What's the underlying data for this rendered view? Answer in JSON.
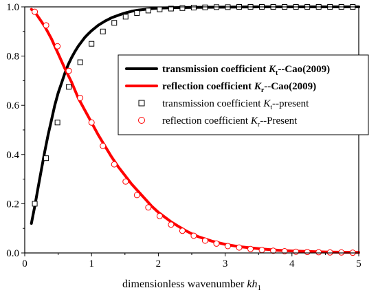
{
  "chart_data": {
    "type": "line",
    "xlabel": {
      "text": "dimensionless wavenumber ",
      "italic": "kh",
      "sub": "1"
    },
    "ylabel": "",
    "xlim": [
      0,
      5
    ],
    "ylim": [
      0,
      1.0
    ],
    "x_ticks": [
      "0",
      "1",
      "2",
      "3",
      "4",
      "5"
    ],
    "y_ticks": [
      "0.0",
      "0.2",
      "0.4",
      "0.6",
      "0.8",
      "1.0"
    ],
    "x_tick_values": [
      0,
      1,
      2,
      3,
      4,
      5
    ],
    "y_tick_values": [
      0,
      0.2,
      0.4,
      0.6,
      0.8,
      1.0
    ],
    "grid": false,
    "legend_position": "right",
    "series": [
      {
        "kind": "line",
        "color": "#000000",
        "legend": {
          "pre": "transmission coefficient ",
          "italic": "K",
          "sub": "t",
          "post": "--Cao(2009)"
        },
        "x": [
          0.1,
          0.15,
          0.2,
          0.25,
          0.3,
          0.35,
          0.4,
          0.45,
          0.5,
          0.55,
          0.6,
          0.65,
          0.7,
          0.75,
          0.8,
          0.85,
          0.9,
          0.95,
          1.0,
          1.1,
          1.2,
          1.3,
          1.4,
          1.5,
          1.6,
          1.7,
          1.8,
          1.9,
          2.0,
          2.25,
          2.5,
          3.0,
          3.5,
          4.0,
          4.5,
          5.0
        ],
        "y": [
          0.12,
          0.19,
          0.265,
          0.34,
          0.413,
          0.48,
          0.54,
          0.6,
          0.65,
          0.69,
          0.73,
          0.765,
          0.793,
          0.818,
          0.84,
          0.858,
          0.876,
          0.89,
          0.903,
          0.925,
          0.942,
          0.956,
          0.966,
          0.975,
          0.982,
          0.987,
          0.99,
          0.993,
          0.995,
          0.997,
          0.998,
          0.999,
          1.0,
          1.0,
          1.0,
          1.0
        ]
      },
      {
        "kind": "line",
        "color": "#ff0000",
        "legend": {
          "pre": "reflection coefficient ",
          "italic": "K",
          "sub": "r",
          "post": "--Cao(2009)"
        },
        "x": [
          0.1,
          0.15,
          0.2,
          0.3,
          0.4,
          0.5,
          0.6,
          0.7,
          0.8,
          0.9,
          1.0,
          1.1,
          1.2,
          1.3,
          1.4,
          1.5,
          1.6,
          1.7,
          1.8,
          1.9,
          2.0,
          2.1,
          2.2,
          2.3,
          2.4,
          2.5,
          2.6,
          2.8,
          3.0,
          3.2,
          3.4,
          3.6,
          3.8,
          4.0,
          4.5,
          5.0
        ],
        "y": [
          0.99,
          0.98,
          0.96,
          0.92,
          0.87,
          0.81,
          0.75,
          0.695,
          0.63,
          0.58,
          0.53,
          0.48,
          0.435,
          0.39,
          0.35,
          0.315,
          0.28,
          0.25,
          0.22,
          0.19,
          0.165,
          0.145,
          0.125,
          0.108,
          0.092,
          0.078,
          0.066,
          0.048,
          0.035,
          0.026,
          0.02,
          0.015,
          0.011,
          0.008,
          0.004,
          0.002
        ]
      },
      {
        "kind": "marker",
        "marker": "square",
        "color": "#000000",
        "legend": {
          "pre": "transmission coefficient ",
          "italic": "K",
          "sub": "t",
          "post": "--present"
        },
        "x": [
          0.15,
          0.32,
          0.49,
          0.66,
          0.83,
          1.0,
          1.17,
          1.34,
          1.51,
          1.68,
          1.85,
          2.02,
          2.19,
          2.36,
          2.53,
          2.7,
          2.87,
          3.04,
          3.21,
          3.38,
          3.55,
          3.72,
          3.89,
          4.06,
          4.23,
          4.4,
          4.57,
          4.74,
          4.91
        ],
        "y": [
          0.2,
          0.385,
          0.53,
          0.675,
          0.775,
          0.85,
          0.9,
          0.935,
          0.96,
          0.975,
          0.985,
          0.99,
          0.993,
          0.995,
          0.997,
          0.998,
          0.999,
          0.999,
          1.0,
          1.0,
          1.0,
          1.0,
          1.0,
          1.0,
          1.0,
          1.0,
          1.0,
          1.0,
          1.0
        ]
      },
      {
        "kind": "marker",
        "marker": "circle",
        "color": "#ff0000",
        "legend": {
          "pre": "reflection coefficient ",
          "italic": "K",
          "sub": "r",
          "post": "--Present"
        },
        "x": [
          0.15,
          0.32,
          0.49,
          0.66,
          0.83,
          1.0,
          1.17,
          1.34,
          1.51,
          1.68,
          1.85,
          2.02,
          2.19,
          2.36,
          2.53,
          2.7,
          2.87,
          3.04,
          3.21,
          3.38,
          3.55,
          3.72,
          3.89,
          4.06,
          4.23,
          4.4,
          4.57,
          4.74,
          4.91
        ],
        "y": [
          0.98,
          0.925,
          0.84,
          0.74,
          0.63,
          0.53,
          0.435,
          0.36,
          0.29,
          0.235,
          0.185,
          0.15,
          0.115,
          0.09,
          0.07,
          0.05,
          0.038,
          0.028,
          0.022,
          0.016,
          0.012,
          0.009,
          0.007,
          0.005,
          0.004,
          0.003,
          0.002,
          0.002,
          0.001
        ]
      }
    ]
  }
}
